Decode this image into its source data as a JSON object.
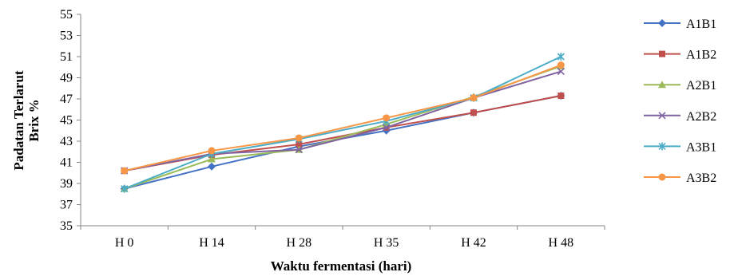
{
  "chart_data": {
    "type": "line",
    "categories": [
      "H 0",
      "H 14",
      "H 28",
      "H 35",
      "H 42",
      "H 48"
    ],
    "ylabel_line1": "Padatan Terlarut",
    "ylabel_line2": "Brix %",
    "xlabel": "Waktu  fermentasi (hari)",
    "ylim": [
      35,
      55
    ],
    "yticks": [
      35,
      37,
      39,
      41,
      43,
      45,
      47,
      49,
      51,
      53,
      55
    ],
    "grid": false,
    "legend_position": "right",
    "series": [
      {
        "name": "A1B1",
        "color": "#4472C4",
        "marker": "diamond",
        "values": [
          38.5,
          40.6,
          42.5,
          44.0,
          45.7,
          47.3
        ]
      },
      {
        "name": "A1B2",
        "color": "#C0504D",
        "marker": "square",
        "values": [
          40.2,
          41.7,
          42.7,
          44.3,
          45.7,
          47.3
        ]
      },
      {
        "name": "A2B1",
        "color": "#9BBB59",
        "marker": "triangle",
        "values": [
          38.5,
          41.3,
          42.2,
          44.6,
          47.2,
          50.1
        ]
      },
      {
        "name": "A2B2",
        "color": "#8064A2",
        "marker": "x",
        "values": [
          40.2,
          41.8,
          42.2,
          44.3,
          47.1,
          49.6
        ]
      },
      {
        "name": "A3B1",
        "color": "#4BACC6",
        "marker": "star",
        "values": [
          38.5,
          41.8,
          43.2,
          44.9,
          47.1,
          51.0
        ]
      },
      {
        "name": "A3B2",
        "color": "#F79646",
        "marker": "circle",
        "values": [
          40.2,
          42.1,
          43.3,
          45.2,
          47.1,
          50.2
        ]
      }
    ]
  }
}
